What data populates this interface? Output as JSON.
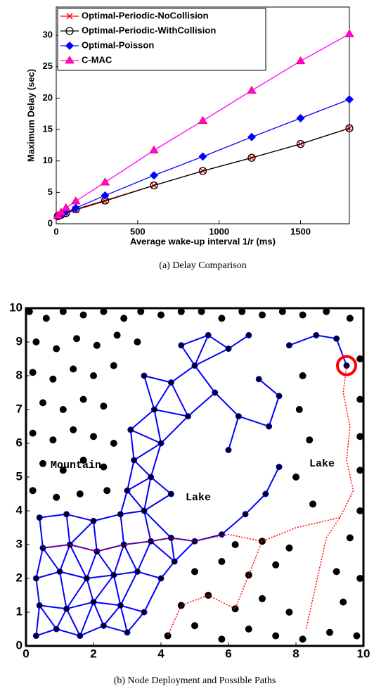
{
  "chart_data": [
    {
      "type": "line",
      "caption": "(a) Delay Comparison",
      "xlabel": "Average wake-up interval 1/r (ms)",
      "ylabel": "Maximum Delay (sec)",
      "x": [
        10,
        30,
        60,
        120,
        300,
        600,
        900,
        1200,
        1500,
        1800
      ],
      "xlim": [
        0,
        1800
      ],
      "ylim": [
        0,
        34.5
      ],
      "xticks": [
        0,
        500,
        1000,
        1500
      ],
      "yticks": [
        0,
        5,
        10,
        15,
        20,
        25,
        30
      ],
      "legend": "upper-left",
      "series": [
        {
          "name": "Optimal-Periodic-NoCollision",
          "color": "#ff0000",
          "marker": "x",
          "values": [
            1.2,
            1.4,
            1.7,
            2.2,
            3.6,
            6.1,
            8.4,
            10.5,
            12.7,
            15.2
          ]
        },
        {
          "name": "Optimal-Periodic-WithCollision",
          "color": "#000000",
          "marker": "o",
          "values": [
            1.2,
            1.4,
            1.7,
            2.3,
            3.7,
            6.1,
            8.4,
            10.5,
            12.7,
            15.2
          ]
        },
        {
          "name": "Optimal-Poisson",
          "color": "#0000ff",
          "marker": "diamond",
          "values": [
            1.2,
            1.5,
            1.9,
            2.5,
            4.5,
            7.7,
            10.7,
            13.8,
            16.8,
            19.8
          ]
        },
        {
          "name": "C-MAC",
          "color": "#ff00ff",
          "marker": "triangle",
          "values": [
            1.3,
            1.8,
            2.5,
            3.6,
            6.6,
            11.7,
            16.4,
            21.2,
            25.9,
            30.2
          ]
        }
      ]
    },
    {
      "type": "network",
      "caption": "(b) Node Deployment and Possible Paths",
      "xlim": [
        0,
        10
      ],
      "ylim": [
        0,
        10
      ],
      "xticks": [
        0,
        2,
        4,
        6,
        8,
        10
      ],
      "yticks": [
        0,
        1,
        2,
        3,
        4,
        5,
        6,
        7,
        8,
        9,
        10
      ],
      "annotations": [
        "Mountain",
        "Lake",
        "Lake"
      ],
      "nodes": {
        "color": "#000000",
        "x": [
          0.1,
          0.6,
          1.1,
          1.7,
          2.3,
          2.9,
          3.4,
          4.0,
          4.6,
          5.2,
          5.8,
          6.4,
          7.0,
          7.6,
          8.2,
          8.9,
          9.6,
          0.3,
          0.9,
          1.5,
          2.1,
          2.7,
          3.3,
          0.2,
          0.8,
          1.4,
          2.0,
          2.6,
          0.5,
          1.1,
          1.7,
          2.3,
          0.2,
          0.8,
          1.4,
          2.0,
          2.6,
          0.5,
          1.1,
          1.7,
          2.3,
          0.2,
          0.9,
          1.6,
          2.4,
          8.2,
          9.9,
          8.1,
          9.9,
          8.4,
          9.9,
          8.0,
          9.9,
          8.5,
          9.9,
          4.2,
          5.0,
          5.8,
          6.6,
          7.4,
          8.2,
          9.0,
          9.8,
          4.6,
          5.4,
          6.2,
          7.0,
          7.8,
          9.4,
          5.0,
          5.8,
          6.6,
          7.4,
          9.2,
          9.9,
          6.2,
          7.0,
          7.8,
          9.6
        ],
        "y": [
          9.9,
          9.7,
          9.9,
          9.8,
          9.9,
          9.7,
          9.9,
          9.8,
          9.9,
          9.9,
          9.7,
          9.9,
          9.8,
          9.9,
          9.8,
          9.9,
          9.7,
          9.0,
          8.8,
          9.1,
          8.9,
          9.2,
          9.0,
          8.1,
          7.9,
          8.2,
          8.0,
          8.3,
          7.2,
          7.0,
          7.3,
          7.1,
          6.3,
          6.1,
          6.4,
          6.2,
          6.0,
          5.4,
          5.2,
          5.5,
          5.3,
          4.6,
          4.4,
          4.5,
          4.6,
          8.0,
          8.5,
          7.0,
          7.3,
          6.1,
          6.2,
          5.0,
          5.2,
          4.2,
          4.0,
          0.3,
          0.6,
          0.2,
          0.5,
          0.3,
          0.2,
          0.4,
          0.3,
          1.2,
          1.5,
          1.1,
          1.4,
          1.0,
          1.3,
          2.2,
          2.5,
          2.1,
          2.4,
          2.2,
          2.0,
          3.0,
          3.1,
          2.9,
          3.2
        ]
      },
      "network": {
        "color": "#0000ff",
        "x": [
          0.3,
          0.9,
          1.6,
          2.3,
          3.0,
          0.4,
          1.2,
          2.0,
          2.8,
          3.5,
          0.3,
          1.0,
          1.8,
          2.6,
          3.3,
          0.5,
          1.3,
          2.1,
          2.9,
          3.7,
          4.3,
          0.4,
          1.2,
          2.0,
          2.8,
          3.5,
          4.4,
          5.0,
          5.8,
          4.0,
          3.0,
          3.2,
          3.1,
          3.7,
          4.0,
          3.8,
          4.3,
          4.8,
          5.0,
          5.6,
          6.0,
          6.3,
          6.9,
          7.2,
          7.5,
          7.1,
          6.5,
          6.0,
          4.3,
          7.8,
          8.6,
          9.2,
          9.5,
          3.5,
          4.6,
          5.4,
          7.5,
          6.6
        ],
        "y": [
          0.3,
          0.5,
          0.3,
          0.6,
          0.4,
          1.2,
          1.1,
          1.3,
          1.2,
          1.0,
          2.0,
          2.2,
          2.0,
          2.1,
          2.2,
          2.9,
          3.0,
          2.8,
          3.0,
          3.1,
          3.2,
          3.8,
          3.9,
          3.7,
          3.9,
          4.0,
          2.5,
          3.1,
          3.3,
          2.0,
          4.6,
          5.5,
          6.4,
          5.0,
          6.0,
          7.0,
          7.8,
          6.8,
          8.3,
          7.5,
          8.8,
          6.8,
          7.9,
          6.5,
          5.3,
          4.5,
          3.9,
          5.8,
          4.5,
          8.9,
          9.2,
          9.1,
          8.3,
          8.0,
          8.9,
          9.2,
          7.4,
          9.2
        ]
      },
      "path": {
        "color": "#ff0000",
        "x": [
          9.5,
          9.4,
          9.6,
          9.5,
          9.7,
          9.3,
          8.9,
          8.7,
          8.5,
          8.3,
          null,
          9.3,
          8.0,
          7.0,
          6.0,
          5.0,
          4.3,
          3.7,
          2.9,
          2.1,
          1.3,
          0.5,
          null,
          7.0,
          6.6,
          6.2,
          5.4,
          4.6,
          4.2
        ],
        "y": [
          8.3,
          7.5,
          6.5,
          5.5,
          4.6,
          3.8,
          3.2,
          2.3,
          1.4,
          0.5,
          null,
          3.8,
          3.5,
          3.1,
          3.3,
          3.1,
          3.2,
          3.1,
          3.0,
          2.8,
          3.0,
          2.9,
          null,
          3.1,
          2.1,
          1.1,
          1.5,
          1.2,
          0.3
        ]
      },
      "sink": {
        "color": "#ff0000",
        "x": 9.5,
        "y": 8.3
      }
    }
  ]
}
